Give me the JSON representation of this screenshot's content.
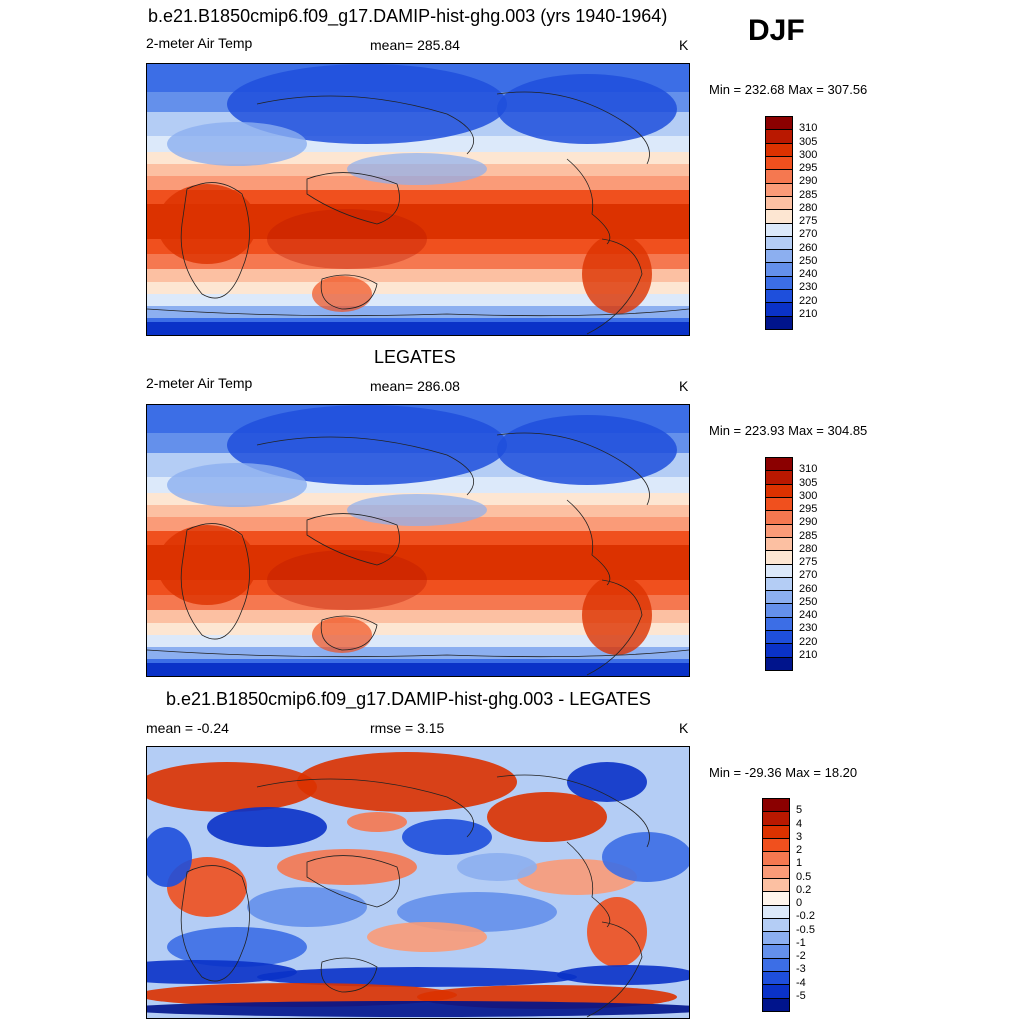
{
  "season": "DJF",
  "panels": [
    {
      "title": "b.e21.B1850cmip6.f09_g17.DAMIP-hist-ghg.003 (yrs 1940-1964)",
      "left": "2-meter Air Temp",
      "center": "mean= 285.84",
      "right": "K",
      "minmax": "Min = 232.68 Max = 307.56",
      "kind": "temp"
    },
    {
      "title": "LEGATES",
      "left": "2-meter Air Temp",
      "center": "mean= 286.08",
      "right": "K",
      "minmax": "Min = 223.93 Max = 304.85",
      "kind": "temp"
    },
    {
      "title": "b.e21.B1850cmip6.f09_g17.DAMIP-hist-ghg.003 - LEGATES",
      "left": "mean =  -0.24",
      "center": "rmse =   3.15",
      "right": "K",
      "minmax": "Min = -29.36 Max =  18.20",
      "kind": "diff"
    }
  ],
  "temp_colorbar": {
    "colors": [
      "#8b0000",
      "#b91800",
      "#dc3200",
      "#f0501e",
      "#f57850",
      "#fa9b78",
      "#fcc0a2",
      "#fde6d2",
      "#dce9fa",
      "#b4cdf5",
      "#8caff0",
      "#6490eb",
      "#3c6ee6",
      "#1e4fdc",
      "#0a32c8",
      "#00148c"
    ],
    "labels": [
      "310",
      "305",
      "300",
      "295",
      "290",
      "285",
      "280",
      "275",
      "270",
      "260",
      "250",
      "240",
      "230",
      "220",
      "210"
    ]
  },
  "diff_colorbar": {
    "colors": [
      "#8b0000",
      "#b91800",
      "#dc3200",
      "#f0501e",
      "#f57850",
      "#fa9b78",
      "#fcc0a2",
      "#fff5ec",
      "#dce9fa",
      "#b4cdf5",
      "#8caff0",
      "#6490eb",
      "#3c6ee6",
      "#1e4fdc",
      "#0a32c8",
      "#00148c"
    ],
    "labels": [
      "5",
      "4",
      "3",
      "2",
      "1",
      "0.5",
      "0.2",
      "0",
      "-0.2",
      "-0.5",
      "-1",
      "-2",
      "-3",
      "-4",
      "-5"
    ]
  }
}
